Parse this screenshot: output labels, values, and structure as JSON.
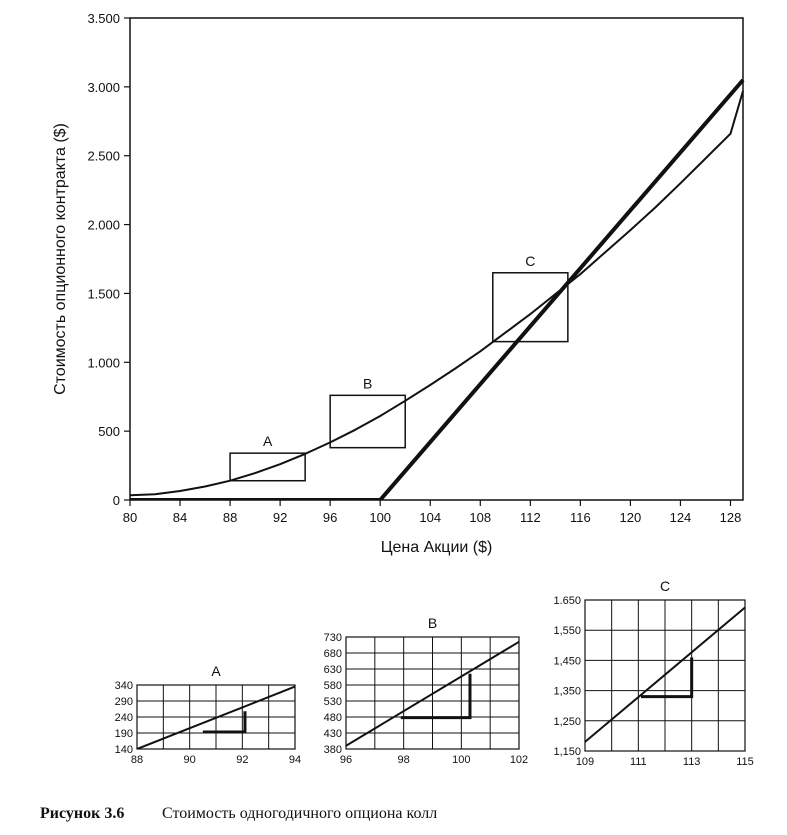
{
  "caption": {
    "label": "Рисунок 3.6",
    "text": "Стоимость одногодичного опциона колл"
  },
  "colors": {
    "ink": "#111111",
    "background": "#ffffff"
  },
  "chart_data": [
    {
      "id": "main",
      "type": "line",
      "xlabel": "Цена Акции ($)",
      "ylabel": "Стоимость опционного контракта ($)",
      "xlim": [
        80,
        129
      ],
      "ylim": [
        0,
        3500
      ],
      "x_ticks": [
        80,
        84,
        88,
        92,
        96,
        100,
        104,
        108,
        112,
        116,
        120,
        124,
        128
      ],
      "x_tick_labels": [
        "80",
        "84",
        "88",
        "92",
        "96",
        "100",
        "104",
        "108",
        "112",
        "116",
        "120",
        "124",
        "128"
      ],
      "y_ticks": [
        0,
        500,
        1000,
        1500,
        2000,
        2500,
        3000,
        3500
      ],
      "y_tick_labels": [
        "0",
        "500",
        "1.000",
        "1.500",
        "2.000",
        "2.500",
        "3.000",
        "3.500"
      ],
      "grid": false,
      "series": [
        {
          "style": "thin",
          "x": [
            80,
            82,
            84,
            86,
            88,
            90,
            92,
            94,
            96,
            98,
            100,
            102,
            104,
            106,
            108,
            110,
            112,
            114,
            116,
            118,
            120,
            122,
            124,
            126,
            128,
            129
          ],
          "y": [
            35,
            42,
            65,
            98,
            140,
            195,
            260,
            335,
            418,
            510,
            610,
            720,
            835,
            955,
            1080,
            1215,
            1350,
            1495,
            1640,
            1800,
            1960,
            2125,
            2300,
            2480,
            2660,
            2970
          ]
        },
        {
          "style": "thick",
          "x": [
            80,
            100,
            129
          ],
          "y": [
            0,
            0,
            3050
          ]
        }
      ],
      "annotations": [
        {
          "label": "A",
          "x0": 88,
          "x1": 94,
          "y0": 140,
          "y1": 340
        },
        {
          "label": "B",
          "x0": 96,
          "x1": 102,
          "y0": 380,
          "y1": 760
        },
        {
          "label": "C",
          "x0": 109,
          "x1": 115,
          "y0": 1150,
          "y1": 1650
        }
      ]
    },
    {
      "id": "A",
      "type": "line",
      "title": "A",
      "xlim": [
        88,
        94
      ],
      "ylim": [
        140,
        340
      ],
      "x_ticks": [
        88,
        90,
        92,
        94
      ],
      "x_tick_labels": [
        "88",
        "90",
        "92",
        "94"
      ],
      "y_ticks": [
        140,
        190,
        240,
        290,
        340
      ],
      "y_tick_labels": [
        "140",
        "190",
        "240",
        "290",
        "340"
      ],
      "grid": true,
      "grid_x_step": 1,
      "series": [
        {
          "style": "thin",
          "x": [
            88,
            94
          ],
          "y": [
            140,
            335
          ]
        }
      ],
      "triangle": {
        "x0": 90.5,
        "x1": 92.1,
        "y_base": 193,
        "y_top": 258
      }
    },
    {
      "id": "B",
      "type": "line",
      "title": "B",
      "xlim": [
        96,
        102
      ],
      "ylim": [
        380,
        730
      ],
      "x_ticks": [
        96,
        98,
        100,
        102
      ],
      "x_tick_labels": [
        "96",
        "98",
        "100",
        "102"
      ],
      "y_ticks": [
        380,
        430,
        480,
        530,
        580,
        630,
        680,
        730
      ],
      "y_tick_labels": [
        "380",
        "430",
        "480",
        "530",
        "580",
        "630",
        "680",
        "730"
      ],
      "grid": true,
      "grid_x_step": 1,
      "series": [
        {
          "style": "thin",
          "x": [
            96,
            102
          ],
          "y": [
            390,
            715
          ]
        }
      ],
      "triangle": {
        "x0": 97.9,
        "x1": 100.3,
        "y_base": 478,
        "y_top": 615
      }
    },
    {
      "id": "C",
      "type": "line",
      "title": "C",
      "xlim": [
        109,
        115
      ],
      "ylim": [
        1150,
        1650
      ],
      "x_ticks": [
        109,
        111,
        113,
        115
      ],
      "x_tick_labels": [
        "109",
        "111",
        "113",
        "115"
      ],
      "y_ticks": [
        1150,
        1250,
        1350,
        1450,
        1550,
        1650
      ],
      "y_tick_labels": [
        "1,150",
        "1,250",
        "1,350",
        "1,450",
        "1,550",
        "1.650"
      ],
      "grid": true,
      "grid_x_step": 1,
      "series": [
        {
          "style": "thin",
          "x": [
            109,
            115
          ],
          "y": [
            1180,
            1625
          ]
        }
      ],
      "triangle": {
        "x0": 111.1,
        "x1": 113.0,
        "y_base": 1330,
        "y_top": 1460
      }
    }
  ]
}
